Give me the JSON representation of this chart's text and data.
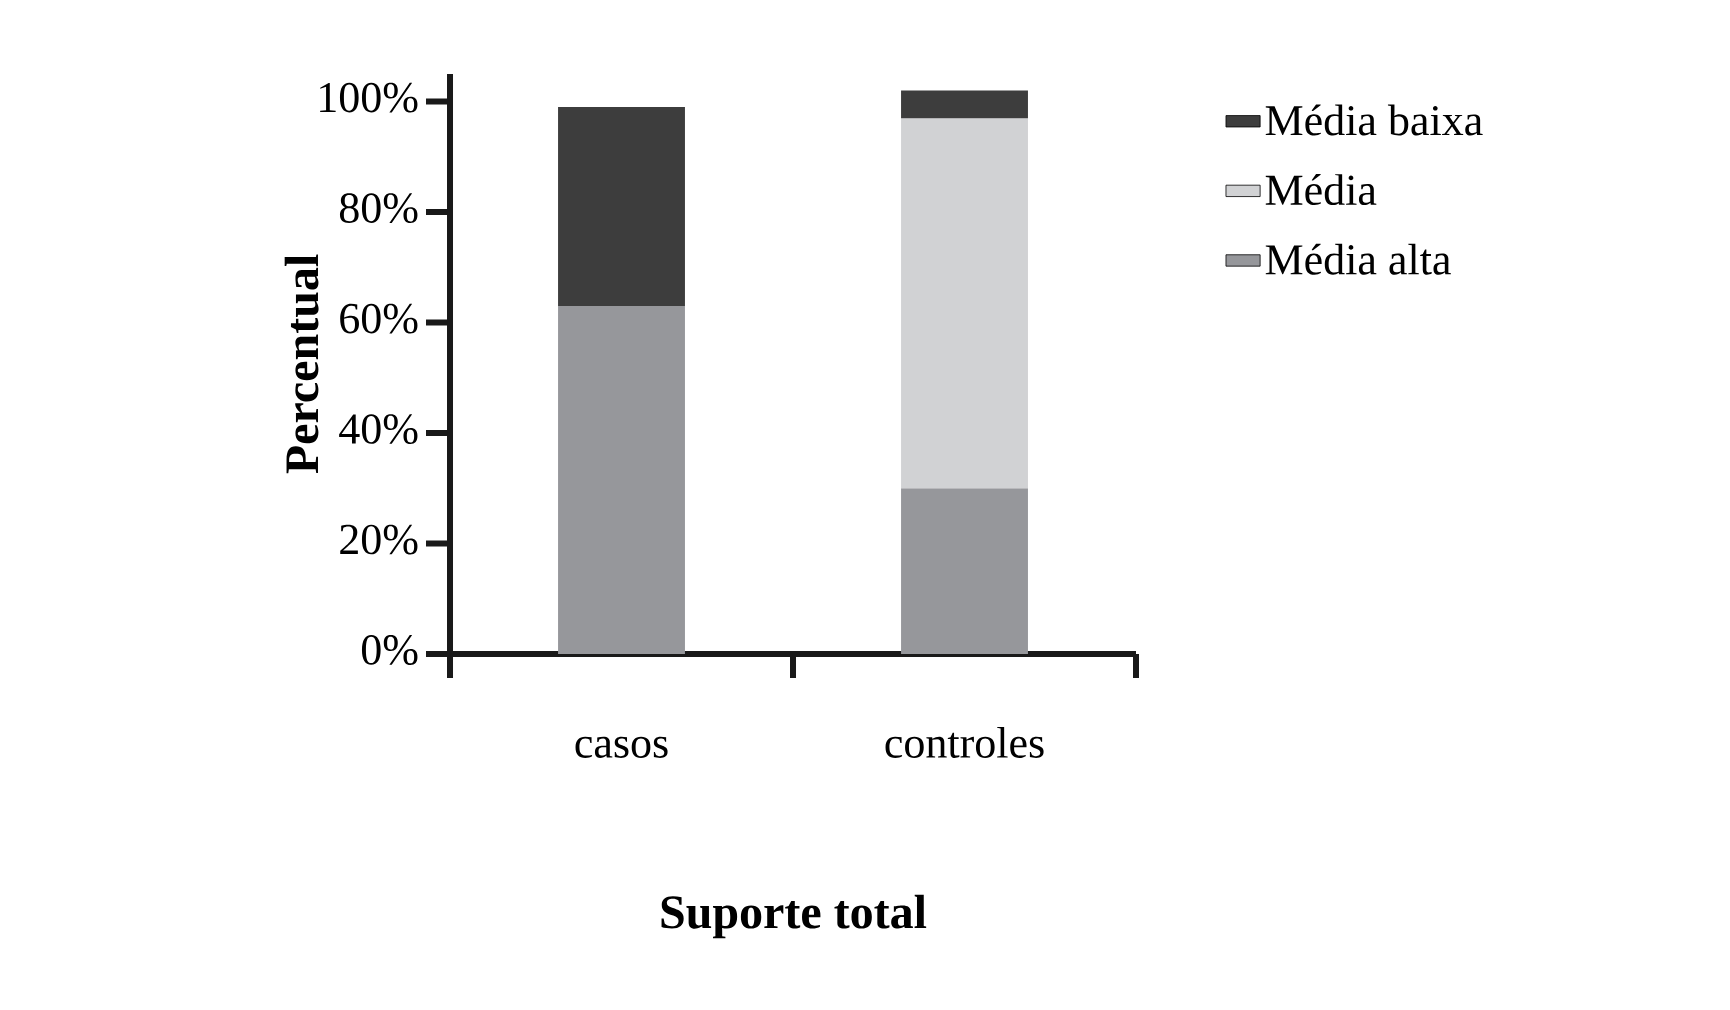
{
  "chart_data": {
    "type": "bar",
    "stacked": true,
    "xlabel": "Suporte total",
    "ylabel": "Percentual",
    "categories": [
      "casos",
      "controles"
    ],
    "series": [
      {
        "name": "Média alta",
        "color": "#96979b",
        "values": [
          63,
          30
        ]
      },
      {
        "name": "Média",
        "color": "#d1d2d4",
        "values": [
          null,
          67
        ]
      },
      {
        "name": "Média baixa",
        "color": "#3d3d3d",
        "values": [
          36,
          5
        ]
      }
    ],
    "ylim": [
      0,
      105
    ],
    "yticks": [
      {
        "value": 0,
        "label": "0%"
      },
      {
        "value": 20,
        "label": "20%"
      },
      {
        "value": 40,
        "label": "40%"
      },
      {
        "value": 60,
        "label": "60%"
      },
      {
        "value": 80,
        "label": "80%"
      },
      {
        "value": 100,
        "label": "100%"
      }
    ],
    "legend": "right",
    "grid": false
  }
}
